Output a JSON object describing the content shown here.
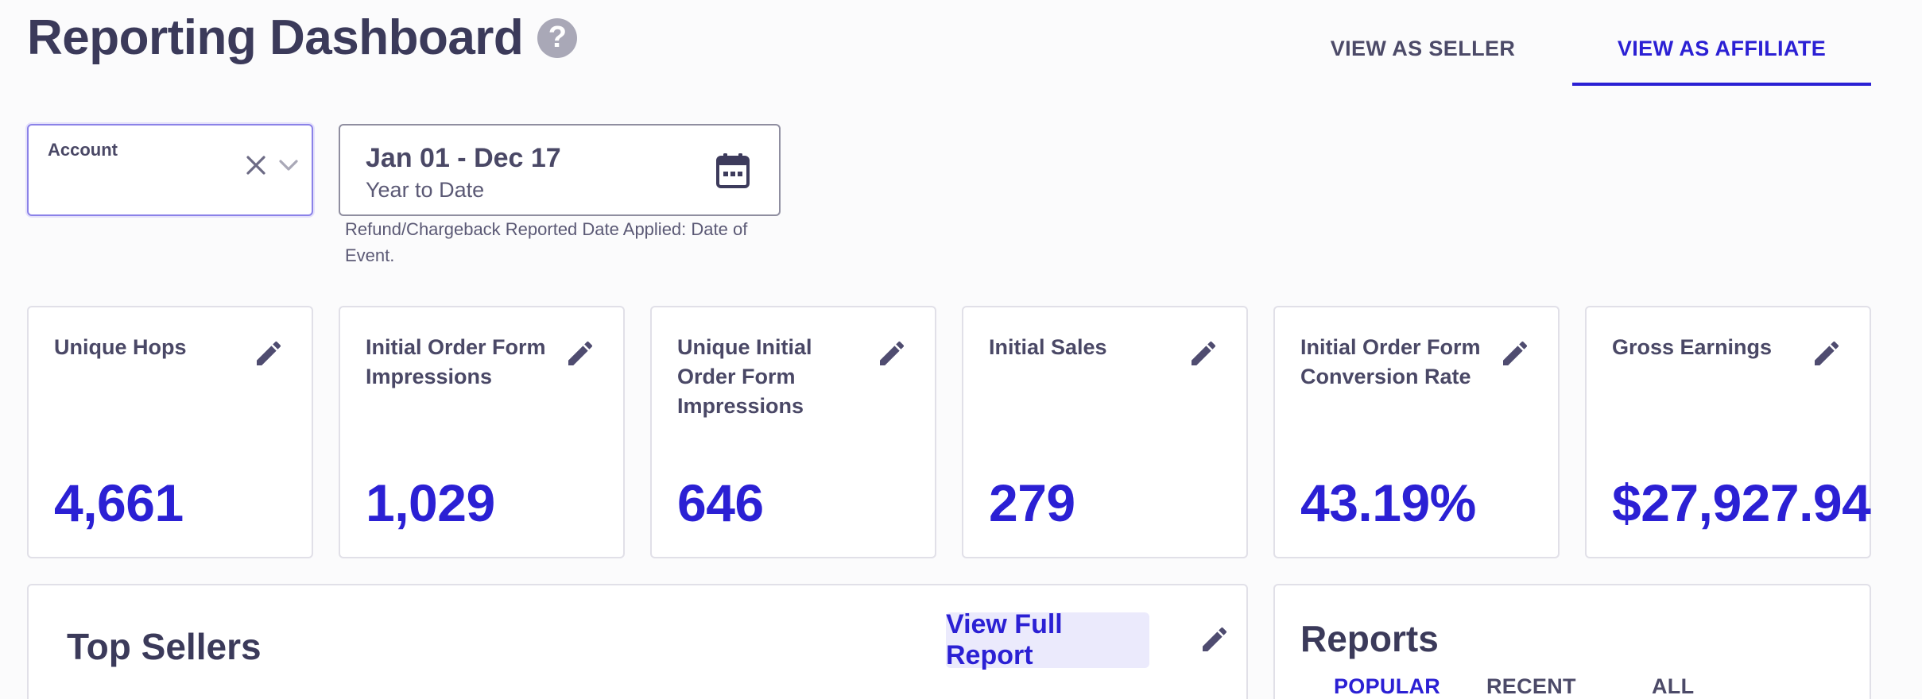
{
  "header": {
    "title": "Reporting Dashboard",
    "help_icon": "?",
    "tabs": [
      {
        "label": "VIEW AS SELLER",
        "active": false
      },
      {
        "label": "VIEW AS AFFILIATE",
        "active": true
      }
    ]
  },
  "filters": {
    "account": {
      "label": "Account",
      "value": "",
      "clear_icon": "close-icon",
      "dropdown_icon": "chevron-down-icon"
    },
    "date": {
      "range": "Jan 01 - Dec 17",
      "preset": "Year to Date",
      "icon": "calendar-icon",
      "note": "Refund/Chargeback Reported Date Applied: Date of Event."
    }
  },
  "metrics": [
    {
      "label": "Unique Hops",
      "value": "4,661"
    },
    {
      "label": "Initial Order Form Impressions",
      "value": "1,029"
    },
    {
      "label": "Unique Initial Order Form Impressions",
      "value": "646"
    },
    {
      "label": "Initial Sales",
      "value": "279"
    },
    {
      "label": "Initial Order Form Conversion Rate",
      "value": "43.19%"
    },
    {
      "label": "Gross Earnings",
      "value": "$27,927.94"
    }
  ],
  "top_sellers": {
    "title": "Top Sellers",
    "full_report_label": "View Full Report"
  },
  "reports": {
    "title": "Reports",
    "tabs": [
      {
        "label": "POPULAR",
        "active": true
      },
      {
        "label": "RECENT",
        "active": false
      },
      {
        "label": "ALL",
        "active": false
      }
    ]
  },
  "colors": {
    "accent": "#2b20d4",
    "text": "#3b3a5a",
    "muted_icon": "#a9a8b7",
    "button_bg": "#ebeafc"
  }
}
